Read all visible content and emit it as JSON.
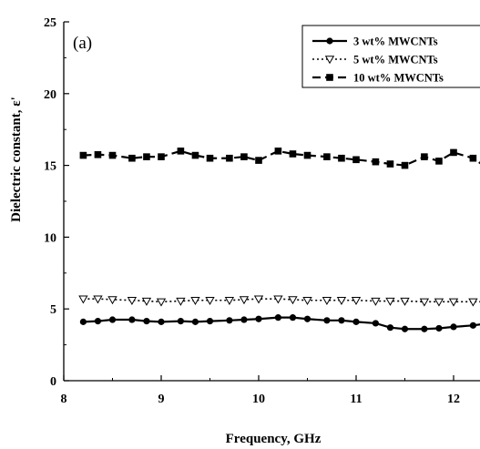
{
  "chart_data": {
    "type": "line",
    "panel_label": "(a)",
    "xlabel": "Frequency, GHz",
    "ylabel": "Dielectric constant, ε'",
    "xlim": [
      8,
      12.4
    ],
    "ylim": [
      0,
      25
    ],
    "x_ticks": [
      "8",
      "9",
      "10",
      "11",
      "12"
    ],
    "y_ticks": [
      "0",
      "5",
      "10",
      "15",
      "20",
      "25"
    ],
    "grid": false,
    "legend_position": "top-right",
    "x": [
      8.2,
      8.35,
      8.5,
      8.7,
      8.85,
      9.0,
      9.2,
      9.35,
      9.5,
      9.7,
      9.85,
      10.0,
      10.2,
      10.35,
      10.5,
      10.7,
      10.85,
      11.0,
      11.2,
      11.35,
      11.5,
      11.7,
      11.85,
      12.0,
      12.2,
      12.35
    ],
    "series": [
      {
        "name": "3 wt% MWCNTs",
        "marker": "circle",
        "line": "solid",
        "values": [
          4.1,
          4.15,
          4.25,
          4.25,
          4.15,
          4.1,
          4.15,
          4.1,
          4.15,
          4.2,
          4.25,
          4.3,
          4.4,
          4.4,
          4.3,
          4.2,
          4.2,
          4.1,
          4.0,
          3.7,
          3.6,
          3.6,
          3.65,
          3.75,
          3.85,
          4.0
        ]
      },
      {
        "name": "5 wt% MWCNTs",
        "marker": "triangle-down-open",
        "line": "dotted",
        "values": [
          5.7,
          5.7,
          5.65,
          5.6,
          5.55,
          5.5,
          5.55,
          5.6,
          5.6,
          5.6,
          5.65,
          5.7,
          5.7,
          5.65,
          5.6,
          5.6,
          5.6,
          5.6,
          5.55,
          5.55,
          5.55,
          5.5,
          5.5,
          5.5,
          5.5,
          5.5
        ]
      },
      {
        "name": "10 wt% MWCNTs",
        "marker": "square",
        "line": "dashed",
        "values": [
          15.7,
          15.75,
          15.7,
          15.5,
          15.6,
          15.6,
          16.0,
          15.7,
          15.5,
          15.5,
          15.6,
          15.35,
          16.0,
          15.8,
          15.7,
          15.6,
          15.5,
          15.4,
          15.25,
          15.1,
          15.0,
          15.6,
          15.3,
          15.9,
          15.5,
          14.8
        ]
      }
    ]
  }
}
